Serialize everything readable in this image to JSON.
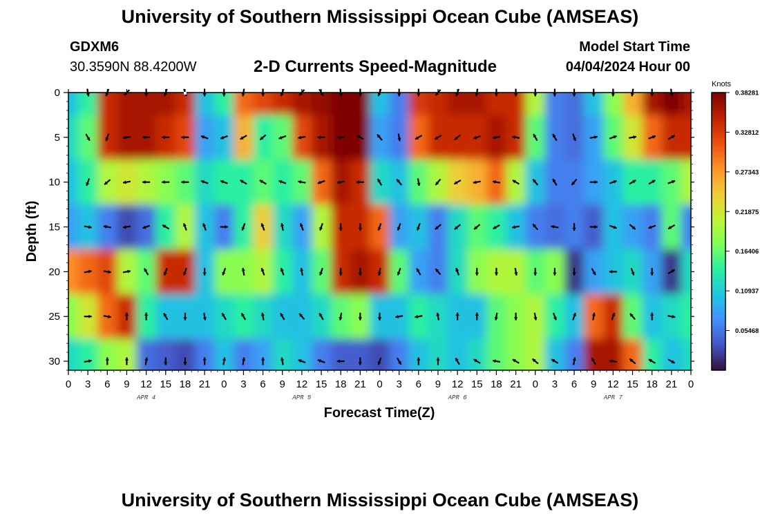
{
  "header": {
    "title": "University of Southern Mississippi Ocean Cube (AMSEAS)",
    "station": "GDXM6",
    "coords": "30.3590N  88.4200W",
    "subtitle": "2-D Currents Speed-Magnitude",
    "model_start_label": "Model Start Time",
    "model_start_value": "04/04/2024 Hour 00"
  },
  "footer": {
    "title": "University of Southern Mississippi Ocean Cube (AMSEAS)"
  },
  "chart_data": {
    "type": "heatmap",
    "title": "2-D Currents Speed-Magnitude",
    "xlabel": "Forecast Time(Z)",
    "ylabel": "Depth (ft)",
    "x_range_hours": [
      0,
      96
    ],
    "x_ticks": [
      "0",
      "3",
      "6",
      "9",
      "12",
      "15",
      "18",
      "21",
      "0",
      "3",
      "6",
      "9",
      "12",
      "15",
      "18",
      "21",
      "0",
      "3",
      "6",
      "9",
      "12",
      "15",
      "18",
      "21",
      "0",
      "3",
      "6",
      "9",
      "12",
      "15",
      "18",
      "21",
      "0"
    ],
    "date_labels": [
      {
        "label": "APR 4",
        "hour": 12
      },
      {
        "label": "APR 5",
        "hour": 36
      },
      {
        "label": "APR 6",
        "hour": 60
      },
      {
        "label": "APR 7",
        "hour": 84
      }
    ],
    "y_range_ft": [
      0,
      31
    ],
    "y_ticks": [
      "0",
      "5",
      "10",
      "15",
      "20",
      "25",
      "30"
    ],
    "y_tick_values": [
      0,
      5,
      10,
      15,
      20,
      25,
      30
    ],
    "colorbar": {
      "unit": "Knots",
      "range": [
        0,
        0.3828
      ],
      "labels": [
        "0.38281",
        "0.32812",
        "0.27343",
        "0.21875",
        "0.16406",
        "0.10937",
        "0.05468"
      ],
      "label_values": [
        0.38281,
        0.32812,
        0.27343,
        0.21875,
        0.16406,
        0.10937,
        0.05468
      ],
      "colors": [
        "#30123b",
        "#4454c4",
        "#4490fe",
        "#1fc8de",
        "#29efa2",
        "#7eff55",
        "#c1f334",
        "#f1ca3a",
        "#fe922a",
        "#ea4f0d",
        "#be2102",
        "#7a0403"
      ]
    },
    "grid_columns": 33,
    "grid_rows": 7,
    "row_depths_ft": [
      0,
      5,
      10,
      15,
      20,
      25,
      30
    ],
    "speed_grid": [
      [
        0.1,
        0.14,
        0.34,
        0.36,
        0.36,
        0.36,
        0.34,
        0.1,
        0.14,
        0.3,
        0.32,
        0.34,
        0.36,
        0.37,
        0.38,
        0.38,
        0.1,
        0.06,
        0.33,
        0.34,
        0.36,
        0.36,
        0.34,
        0.34,
        0.2,
        0.06,
        0.05,
        0.1,
        0.18,
        0.26,
        0.36,
        0.38,
        0.36
      ],
      [
        0.12,
        0.16,
        0.34,
        0.36,
        0.36,
        0.34,
        0.32,
        0.08,
        0.1,
        0.26,
        0.14,
        0.16,
        0.32,
        0.36,
        0.38,
        0.38,
        0.08,
        0.06,
        0.3,
        0.34,
        0.34,
        0.34,
        0.36,
        0.34,
        0.16,
        0.06,
        0.05,
        0.08,
        0.16,
        0.22,
        0.3,
        0.34,
        0.34
      ],
      [
        0.1,
        0.14,
        0.2,
        0.22,
        0.2,
        0.18,
        0.16,
        0.12,
        0.14,
        0.14,
        0.16,
        0.14,
        0.16,
        0.3,
        0.36,
        0.34,
        0.12,
        0.1,
        0.16,
        0.2,
        0.24,
        0.26,
        0.3,
        0.2,
        0.1,
        0.06,
        0.06,
        0.08,
        0.1,
        0.14,
        0.14,
        0.16,
        0.2
      ],
      [
        0.08,
        0.1,
        0.06,
        0.03,
        0.05,
        0.14,
        0.2,
        0.1,
        0.06,
        0.14,
        0.24,
        0.12,
        0.08,
        0.2,
        0.34,
        0.34,
        0.3,
        0.08,
        0.1,
        0.06,
        0.12,
        0.16,
        0.14,
        0.1,
        0.06,
        0.05,
        0.06,
        0.04,
        0.1,
        0.08,
        0.06,
        0.16,
        0.06
      ],
      [
        0.28,
        0.3,
        0.32,
        0.2,
        0.16,
        0.34,
        0.34,
        0.1,
        0.18,
        0.18,
        0.2,
        0.14,
        0.1,
        0.16,
        0.34,
        0.36,
        0.34,
        0.16,
        0.08,
        0.06,
        0.12,
        0.18,
        0.2,
        0.2,
        0.16,
        0.18,
        0.02,
        0.08,
        0.1,
        0.12,
        0.08,
        0.02,
        0.12
      ],
      [
        0.18,
        0.22,
        0.3,
        0.34,
        0.14,
        0.1,
        0.1,
        0.1,
        0.12,
        0.14,
        0.12,
        0.1,
        0.1,
        0.12,
        0.16,
        0.18,
        0.1,
        0.1,
        0.14,
        0.12,
        0.1,
        0.1,
        0.16,
        0.18,
        0.2,
        0.14,
        0.1,
        0.3,
        0.34,
        0.16,
        0.1,
        0.12,
        0.14
      ],
      [
        0.12,
        0.14,
        0.18,
        0.2,
        0.05,
        0.04,
        0.03,
        0.06,
        0.1,
        0.06,
        0.08,
        0.12,
        0.1,
        0.06,
        0.04,
        0.04,
        0.03,
        0.06,
        0.1,
        0.12,
        0.1,
        0.12,
        0.16,
        0.18,
        0.2,
        0.1,
        0.06,
        0.36,
        0.36,
        0.3,
        0.14,
        0.1,
        0.12
      ]
    ],
    "direction_grid_deg": [
      [
        180,
        170,
        200,
        225,
        180,
        200,
        160,
        180,
        180,
        190,
        180,
        200,
        220,
        150,
        170,
        180,
        200,
        180,
        180,
        220,
        200,
        190,
        180,
        180,
        180,
        180,
        180,
        180,
        180,
        190,
        180,
        170,
        180
      ],
      [
        30,
        150,
        200,
        260,
        270,
        270,
        270,
        290,
        250,
        240,
        230,
        250,
        260,
        270,
        270,
        300,
        320,
        170,
        240,
        240,
        230,
        250,
        260,
        280,
        330,
        330,
        160,
        80,
        70,
        80,
        70,
        60,
        60
      ],
      [
        160,
        200,
        230,
        260,
        270,
        270,
        270,
        290,
        290,
        300,
        300,
        290,
        280,
        250,
        260,
        270,
        330,
        320,
        170,
        220,
        240,
        260,
        280,
        300,
        320,
        330,
        220,
        90,
        70,
        60,
        60,
        70,
        80
      ],
      [
        270,
        100,
        280,
        260,
        250,
        300,
        340,
        340,
        90,
        200,
        340,
        350,
        340,
        200,
        180,
        180,
        200,
        200,
        200,
        230,
        230,
        230,
        240,
        260,
        320,
        280,
        180,
        90,
        110,
        130,
        250,
        240,
        200
      ],
      [
        270,
        80,
        100,
        80,
        330,
        200,
        200,
        180,
        200,
        350,
        340,
        340,
        350,
        200,
        180,
        180,
        190,
        200,
        330,
        320,
        340,
        180,
        180,
        170,
        180,
        180,
        180,
        150,
        270,
        160,
        180,
        60,
        170
      ],
      [
        30,
        90,
        100,
        0,
        0,
        330,
        180,
        170,
        330,
        330,
        350,
        330,
        320,
        330,
        190,
        180,
        180,
        260,
        260,
        350,
        0,
        0,
        190,
        180,
        170,
        160,
        20,
        10,
        20,
        320,
        0,
        100,
        100
      ],
      [
        70,
        80,
        0,
        0,
        10,
        180,
        180,
        0,
        10,
        10,
        0,
        350,
        290,
        290,
        270,
        180,
        200,
        150,
        0,
        0,
        330,
        300,
        280,
        300,
        310,
        300,
        10,
        330,
        280,
        310,
        300,
        120,
        90
      ]
    ]
  }
}
